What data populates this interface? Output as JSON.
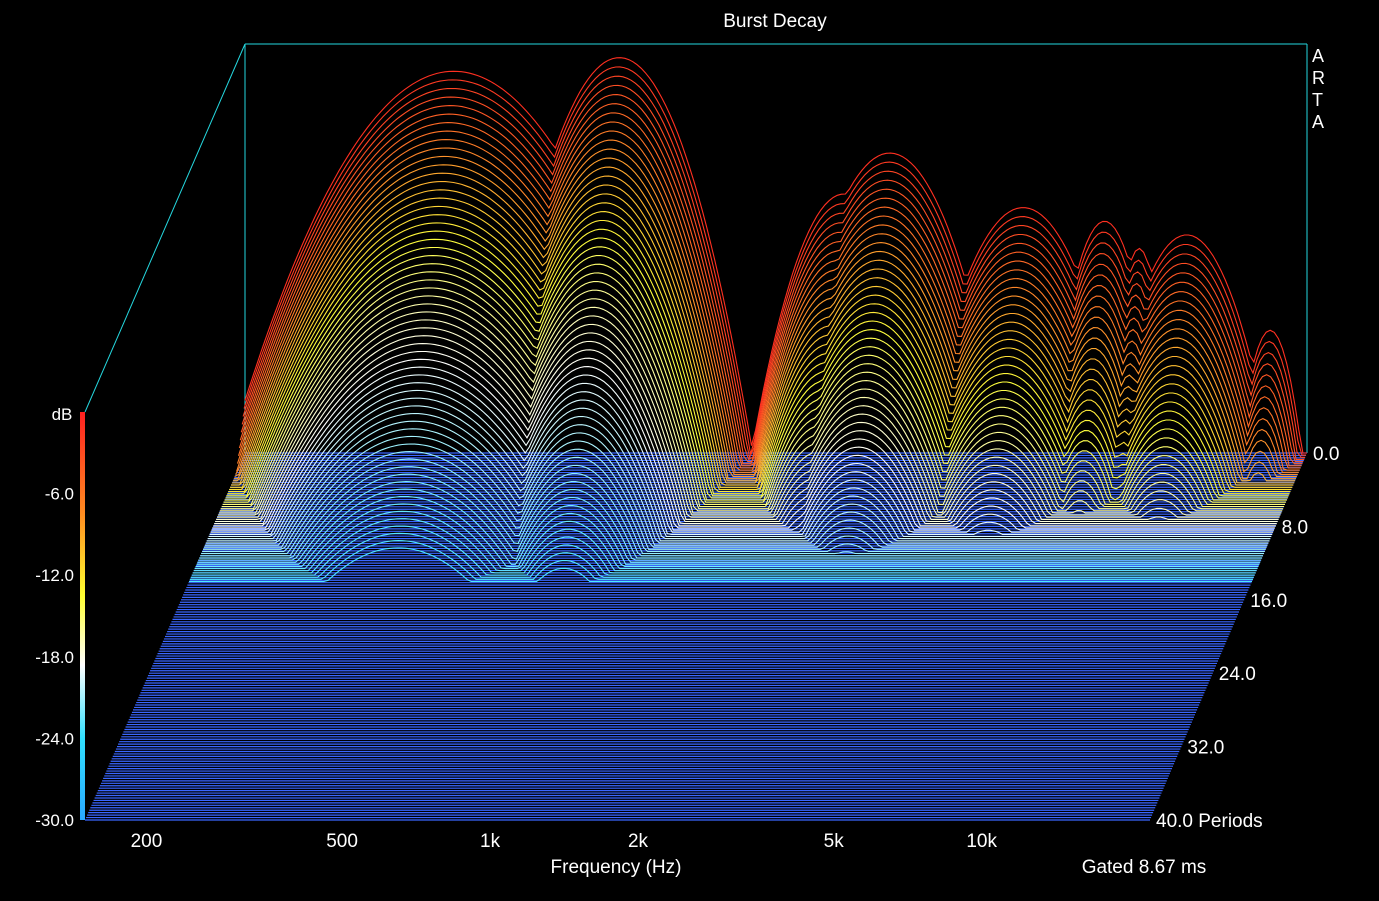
{
  "chart_data": {
    "type": "waterfall",
    "title": "Burst Decay",
    "brand": "ARTA",
    "xlabel": "Frequency (Hz)",
    "x_scale": "log",
    "xlim": [
      150,
      22000
    ],
    "x_ticks": [
      {
        "value": 200,
        "label": "200"
      },
      {
        "value": 500,
        "label": "500"
      },
      {
        "value": 1000,
        "label": "1k"
      },
      {
        "value": 2000,
        "label": "2k"
      },
      {
        "value": 5000,
        "label": "5k"
      },
      {
        "value": 10000,
        "label": "10k"
      }
    ],
    "zlabel": "dB",
    "zlim": [
      -30,
      0
    ],
    "z_ticks": [
      "-6.0",
      "-12.0",
      "-18.0",
      "-24.0",
      "-30.0"
    ],
    "time_unit": "Periods",
    "time_ticks": [
      "0.0",
      "8.0",
      "16.0",
      "24.0",
      "32.0",
      "40.0"
    ],
    "time_range": [
      0,
      40
    ],
    "gated_note": "Gated 8.67 ms",
    "colorscale": [
      "#ff2a2a",
      "#ff7a2a",
      "#ffff40",
      "#ffffff",
      "#40e8ff",
      "#3a7bff"
    ],
    "floor_color": "#3a66ff",
    "resonances": [
      {
        "freq": 400,
        "level_db": -2,
        "width_oct": 0.6
      },
      {
        "freq": 870,
        "level_db": -1,
        "width_oct": 0.35
      },
      {
        "freq": 3100,
        "level_db": -8,
        "width_oct": 0.35
      },
      {
        "freq": 2500,
        "level_db": -11,
        "width_oct": 0.3
      },
      {
        "freq": 5800,
        "level_db": -12,
        "width_oct": 0.35
      },
      {
        "freq": 8500,
        "level_db": -13,
        "width_oct": 0.2
      },
      {
        "freq": 12500,
        "level_db": -14,
        "width_oct": 0.3
      },
      {
        "freq": 18500,
        "level_db": -21,
        "width_oct": 0.15
      },
      {
        "freq": 10000,
        "level_db": -15,
        "width_oct": 0.12
      },
      {
        "freq": 7000,
        "level_db": -25,
        "width_oct": 0.1
      }
    ]
  }
}
